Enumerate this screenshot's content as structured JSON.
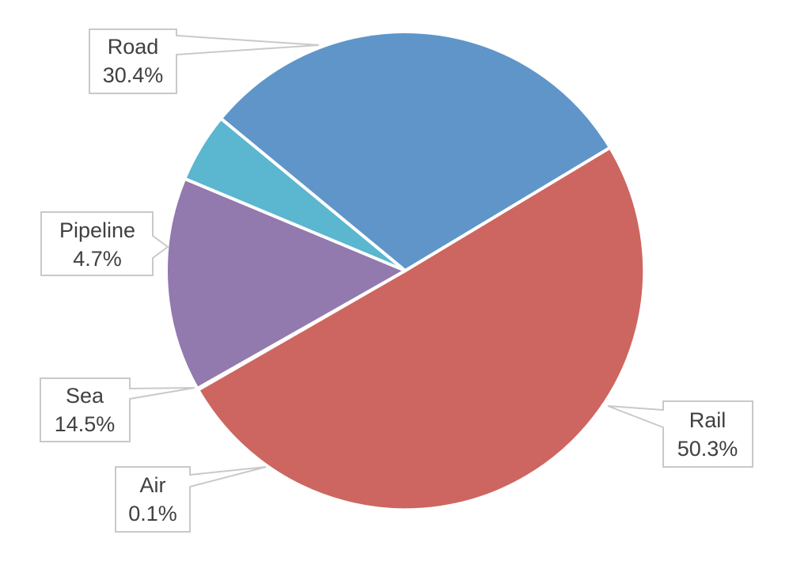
{
  "chart_data": {
    "type": "pie",
    "title": "",
    "legend": "none",
    "slices": [
      {
        "name": "Rail",
        "value": 50.3,
        "value_label": "50.3%",
        "color": "#cd6660"
      },
      {
        "name": "Air",
        "value": 0.1,
        "value_label": "0.1%",
        "color": "#c2d07a"
      },
      {
        "name": "Sea",
        "value": 14.5,
        "value_label": "14.5%",
        "color": "#9279ae"
      },
      {
        "name": "Pipeline",
        "value": 4.7,
        "value_label": "4.7%",
        "color": "#5bb6cf"
      },
      {
        "name": "Road",
        "value": 30.4,
        "value_label": "30.4%",
        "color": "#5f95c9"
      }
    ]
  }
}
